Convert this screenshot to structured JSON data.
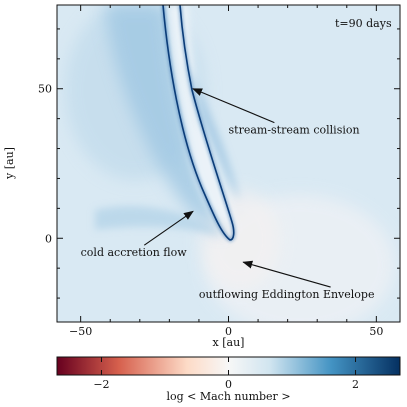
{
  "chart_data": {
    "type": "heatmap",
    "time_label": "t=90 days",
    "xlabel": "x [au]",
    "ylabel": "y [au]",
    "xlim": [
      -58,
      58
    ],
    "ylim": [
      -28,
      78
    ],
    "x_ticks": [
      -50,
      0,
      50
    ],
    "y_ticks": [
      0,
      50
    ],
    "colorbar": {
      "label": "log < Mach number >",
      "range": [
        -2.7,
        2.7
      ],
      "ticks": [
        -2,
        0,
        2
      ],
      "colormap": "RdBu (red negative, white zero, blue positive)",
      "colors": [
        "#67001f",
        "#d6604d",
        "#fddbc7",
        "#f7f7f7",
        "#d1e5f0",
        "#4393c3",
        "#053061"
      ]
    },
    "annotations": [
      {
        "text": "stream-stream collision",
        "x": 0,
        "y": 35,
        "arrow_to": [
          -12,
          50
        ]
      },
      {
        "text": "cold accretion flow",
        "x": -50,
        "y": -6,
        "arrow_to": [
          -12,
          9
        ]
      },
      {
        "text": "outflowing Eddington Envelope",
        "x": -10,
        "y": -20,
        "arrow_to": [
          5,
          -8
        ]
      }
    ]
  }
}
